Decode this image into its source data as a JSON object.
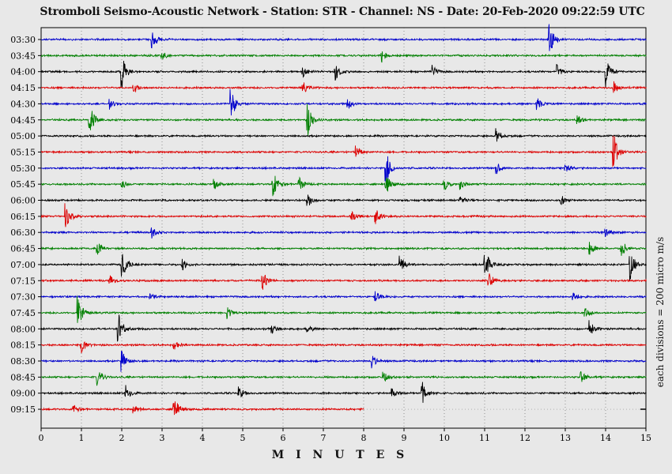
{
  "chart_data": {
    "type": "line",
    "title": "Stromboli Seismo-Acoustic Network - Station: STR - Channel: NS - Date: 20-Feb-2020 09:22:59 UTC",
    "xlabel": "M I N U T E S",
    "ylabel_right": "each divisions = 200 micro m/s",
    "xlim": [
      0,
      15
    ],
    "x_ticks": [
      "0",
      "1",
      "2",
      "3",
      "4",
      "5",
      "6",
      "7",
      "8",
      "9",
      "10",
      "11",
      "12",
      "13",
      "14",
      "15"
    ],
    "grid": true,
    "series_colors": [
      "#0000cc",
      "#008000",
      "#000000",
      "#dd0000"
    ],
    "rows": [
      {
        "label": "03:30",
        "color": "#0000cc",
        "events": [
          [
            2.75,
            0.6
          ],
          [
            12.6,
            1.0
          ]
        ]
      },
      {
        "label": "03:45",
        "color": "#008000",
        "events": [
          [
            3.0,
            0.25
          ],
          [
            8.45,
            0.35
          ]
        ]
      },
      {
        "label": "04:00",
        "color": "#000000",
        "events": [
          [
            2.0,
            1.0
          ],
          [
            6.5,
            0.3
          ],
          [
            7.3,
            0.5
          ],
          [
            9.7,
            0.35
          ],
          [
            12.8,
            0.4
          ],
          [
            14.0,
            0.9
          ]
        ]
      },
      {
        "label": "04:15",
        "color": "#dd0000",
        "events": [
          [
            2.3,
            0.3
          ],
          [
            6.5,
            0.3
          ],
          [
            14.2,
            0.35
          ]
        ]
      },
      {
        "label": "04:30",
        "color": "#0000cc",
        "events": [
          [
            1.7,
            0.3
          ],
          [
            4.7,
            1.0
          ],
          [
            7.6,
            0.3
          ],
          [
            12.3,
            0.35
          ]
        ]
      },
      {
        "label": "04:45",
        "color": "#008000",
        "events": [
          [
            1.2,
            1.0
          ],
          [
            6.6,
            1.0
          ],
          [
            13.3,
            0.3
          ]
        ]
      },
      {
        "label": "05:00",
        "color": "#000000",
        "events": [
          [
            11.3,
            0.4
          ]
        ]
      },
      {
        "label": "05:15",
        "color": "#dd0000",
        "events": [
          [
            7.8,
            0.4
          ],
          [
            14.2,
            1.0
          ]
        ]
      },
      {
        "label": "05:30",
        "color": "#0000cc",
        "events": [
          [
            8.55,
            1.0
          ],
          [
            11.3,
            0.35
          ],
          [
            13.0,
            0.35
          ]
        ]
      },
      {
        "label": "05:45",
        "color": "#008000",
        "events": [
          [
            2.0,
            0.25
          ],
          [
            4.3,
            0.3
          ],
          [
            5.75,
            0.9
          ],
          [
            6.4,
            0.4
          ],
          [
            8.55,
            0.6
          ],
          [
            10.0,
            0.35
          ],
          [
            10.4,
            0.3
          ]
        ]
      },
      {
        "label": "06:00",
        "color": "#000000",
        "events": [
          [
            6.6,
            0.4
          ],
          [
            10.4,
            0.2
          ],
          [
            12.9,
            0.3
          ]
        ]
      },
      {
        "label": "06:15",
        "color": "#dd0000",
        "events": [
          [
            0.6,
            1.0
          ],
          [
            7.7,
            0.3
          ],
          [
            8.3,
            0.45
          ]
        ]
      },
      {
        "label": "06:30",
        "color": "#0000cc",
        "events": [
          [
            2.75,
            0.3
          ],
          [
            14.0,
            0.25
          ]
        ]
      },
      {
        "label": "06:45",
        "color": "#008000",
        "events": [
          [
            1.4,
            0.35
          ],
          [
            13.6,
            0.5
          ],
          [
            14.4,
            0.5
          ]
        ]
      },
      {
        "label": "07:00",
        "color": "#000000",
        "events": [
          [
            2.0,
            1.0
          ],
          [
            3.5,
            0.3
          ],
          [
            8.9,
            0.5
          ],
          [
            11.0,
            1.0
          ],
          [
            14.6,
            1.0
          ]
        ]
      },
      {
        "label": "07:15",
        "color": "#dd0000",
        "events": [
          [
            1.7,
            0.35
          ],
          [
            5.5,
            0.5
          ],
          [
            11.1,
            0.5
          ]
        ]
      },
      {
        "label": "07:30",
        "color": "#0000cc",
        "events": [
          [
            2.7,
            0.2
          ],
          [
            8.3,
            0.3
          ],
          [
            13.2,
            0.3
          ]
        ]
      },
      {
        "label": "07:45",
        "color": "#008000",
        "events": [
          [
            0.9,
            1.0
          ],
          [
            4.6,
            0.4
          ],
          [
            13.5,
            0.3
          ]
        ]
      },
      {
        "label": "08:00",
        "color": "#000000",
        "events": [
          [
            1.9,
            1.0
          ],
          [
            5.7,
            0.3
          ],
          [
            6.6,
            0.25
          ],
          [
            13.6,
            0.45
          ]
        ]
      },
      {
        "label": "08:15",
        "color": "#dd0000",
        "events": [
          [
            1.0,
            0.45
          ],
          [
            3.3,
            0.25
          ]
        ]
      },
      {
        "label": "08:30",
        "color": "#0000cc",
        "events": [
          [
            2.0,
            0.6
          ],
          [
            8.2,
            0.4
          ]
        ]
      },
      {
        "label": "08:45",
        "color": "#008000",
        "events": [
          [
            1.4,
            0.5
          ],
          [
            8.5,
            0.3
          ],
          [
            13.4,
            0.3
          ]
        ]
      },
      {
        "label": "09:00",
        "color": "#000000",
        "events": [
          [
            2.1,
            0.45
          ],
          [
            4.9,
            0.35
          ],
          [
            8.7,
            0.3
          ],
          [
            9.45,
            0.7
          ]
        ]
      },
      {
        "label": "09:15",
        "color": "#dd0000",
        "events": [
          [
            0.8,
            0.3
          ],
          [
            2.3,
            0.25
          ],
          [
            3.3,
            0.75
          ]
        ]
      }
    ],
    "last_row_end_minute": 8.0
  }
}
